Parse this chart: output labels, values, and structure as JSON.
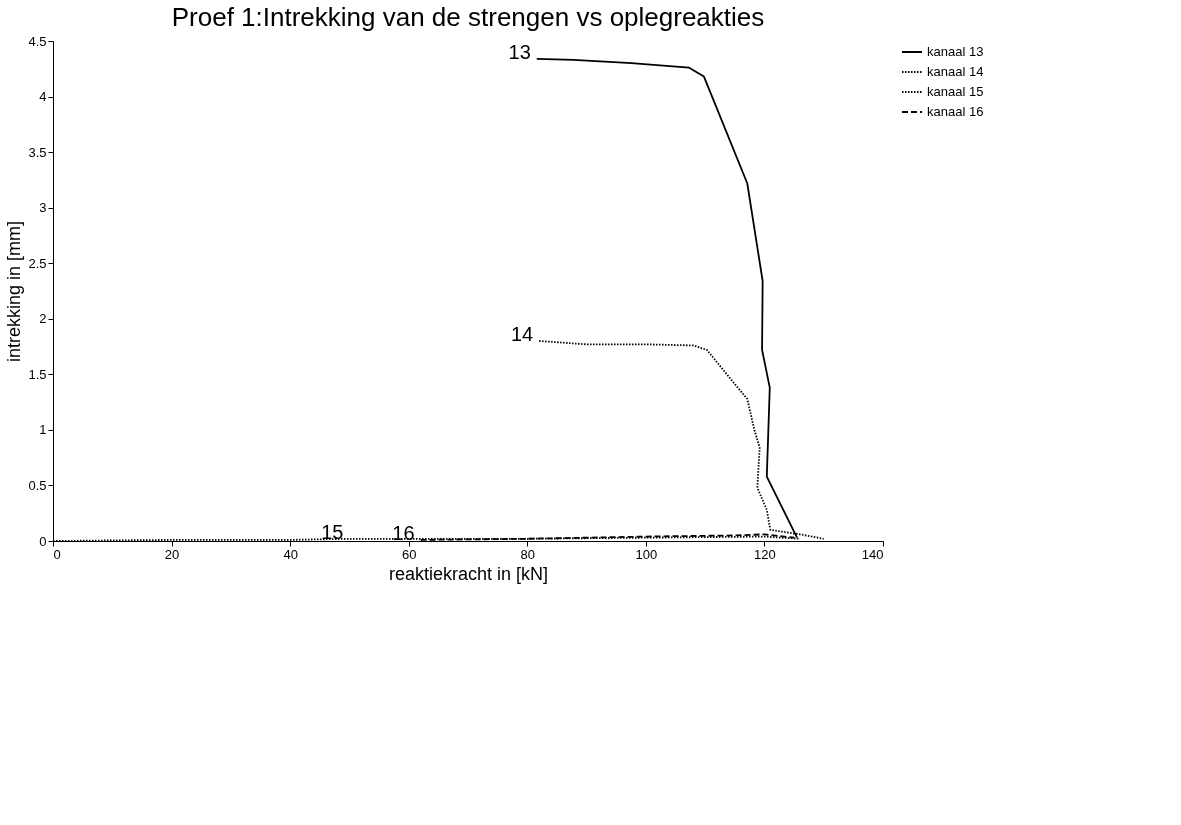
{
  "chart_data": {
    "type": "line",
    "title": "Proef 1:Intrekking van de strengen vs oplegreakties",
    "xlabel": "reaktiekracht in [kN]",
    "ylabel": "intrekking in [mm]",
    "xlim": [
      0,
      140
    ],
    "xticks": [
      0,
      20,
      40,
      60,
      80,
      100,
      120,
      140
    ],
    "ylim": [
      0,
      4.5
    ],
    "yticks": [
      0,
      0.5,
      1,
      1.5,
      2,
      2.5,
      3,
      3.5,
      4,
      4.5
    ],
    "grid": false,
    "legend": "right",
    "marker": "none",
    "series": [
      {
        "name": "kanaal 13",
        "color": "#000000",
        "line_style": "solid",
        "x": [
          81.6,
          87.8,
          97.6,
          102.4,
          107.3,
          109.8,
          117.1,
          119.7,
          119.6,
          120.9,
          120.4,
          125.5
        ],
        "values": [
          4.34,
          4.33,
          4.3,
          4.28,
          4.26,
          4.18,
          3.22,
          2.34,
          1.72,
          1.38,
          0.58,
          0.03
        ]
      },
      {
        "name": "kanaal 14",
        "color": "#000000",
        "line_style": "dotted",
        "x": [
          82,
          90,
          100,
          108,
          110.3,
          115.5,
          117.1,
          118.3,
          119.2,
          118.8,
          120.4,
          121,
          126,
          130
        ],
        "values": [
          1.8,
          1.77,
          1.77,
          1.76,
          1.72,
          1.38,
          1.28,
          1.0,
          0.84,
          0.48,
          0.28,
          0.1,
          0.06,
          0.02
        ]
      },
      {
        "name": "kanaal 15",
        "color": "#000000",
        "line_style": "dotted",
        "x": [
          0,
          20,
          40,
          50,
          60,
          80,
          100,
          120,
          126
        ],
        "values": [
          0,
          0.01,
          0.01,
          0.02,
          0.02,
          0.02,
          0.03,
          0.04,
          0.02
        ]
      },
      {
        "name": "kanaal 16",
        "color": "#000000",
        "line_style": "dashed",
        "x": [
          62,
          80,
          100,
          115,
          120,
          125
        ],
        "values": [
          0.01,
          0.02,
          0.04,
          0.05,
          0.06,
          0.03
        ]
      }
    ],
    "annotations": [
      {
        "text": "13",
        "x": 81.6,
        "y": 4.34
      },
      {
        "text": "14",
        "x": 82,
        "y": 1.8
      },
      {
        "text": "15",
        "x": 50,
        "y": 0.02
      },
      {
        "text": "16",
        "x": 62,
        "y": 0.01
      }
    ]
  }
}
